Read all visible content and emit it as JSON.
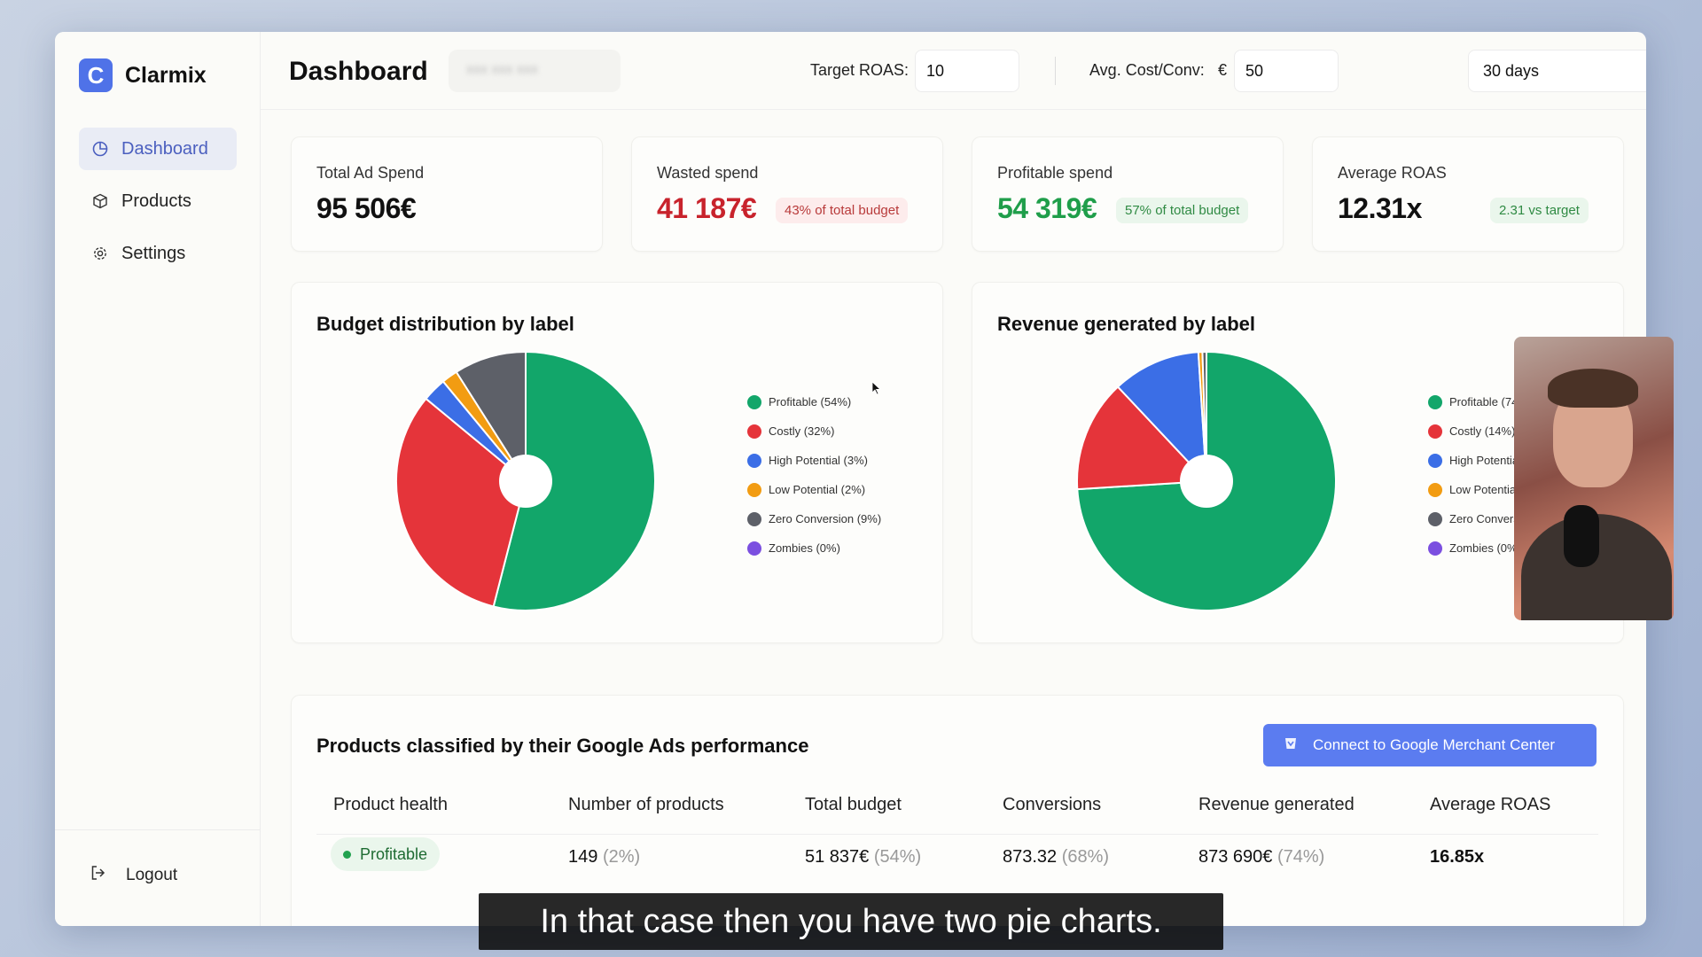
{
  "brand": {
    "name": "Clarmix",
    "logo_letter": "C"
  },
  "sidebar": {
    "items": [
      {
        "label": "Dashboard",
        "icon": "pie-chart-icon",
        "active": true
      },
      {
        "label": "Products",
        "icon": "package-icon",
        "active": false
      },
      {
        "label": "Settings",
        "icon": "gear-icon",
        "active": false
      }
    ],
    "logout_label": "Logout"
  },
  "header": {
    "title": "Dashboard",
    "target_roas_label": "Target ROAS:",
    "target_roas_value": "10",
    "avg_cost_label": "Avg. Cost/Conv:",
    "currency_symbol": "€",
    "avg_cost_value": "50",
    "period_value": "30 days"
  },
  "stats": [
    {
      "label": "Total Ad Spend",
      "value": "95 506€",
      "badge": ""
    },
    {
      "label": "Wasted spend",
      "value": "41 187€",
      "badge": "43% of total budget"
    },
    {
      "label": "Profitable spend",
      "value": "54 319€",
      "badge": "57% of total budget"
    },
    {
      "label": "Average ROAS",
      "value": "12.31x",
      "badge": "2.31 vs target"
    }
  ],
  "colors": {
    "profitable": "#12a66a",
    "costly": "#e5343a",
    "high_potential": "#3b6ee6",
    "low_potential": "#f29c12",
    "zero_conversion": "#5d6068",
    "zombies": "#7b4fe0",
    "accent": "#5b7cf0"
  },
  "chart_data": [
    {
      "type": "pie",
      "title": "Budget distribution by label",
      "categories": [
        "Profitable (54%)",
        "Costly (32%)",
        "High Potential (3%)",
        "Low Potential (2%)",
        "Zero Conversion (9%)",
        "Zombies (0%)"
      ],
      "values": [
        54,
        32,
        3,
        2,
        9,
        0
      ],
      "legend": "right"
    },
    {
      "type": "pie",
      "title": "Revenue generated by label",
      "categories": [
        "Profitable (74",
        "Costly (14%)",
        "High Potentia",
        "Low Potentia",
        "Zero Convers",
        "Zombies (0%"
      ],
      "values": [
        74,
        14,
        11,
        0.5,
        0.5,
        0
      ],
      "legend": "right"
    }
  ],
  "table": {
    "title": "Products classified by their Google Ads performance",
    "connect_button": "Connect to Google Merchant Center",
    "columns": [
      "Product health",
      "Number of products",
      "Total budget",
      "Conversions",
      "Revenue generated",
      "Average ROAS"
    ],
    "rows": [
      {
        "health": "Profitable",
        "products": "149",
        "products_pct": "(2%)",
        "budget": "51 837€",
        "budget_pct": "(54%)",
        "conversions": "873.32",
        "conversions_pct": "(68%)",
        "revenue": "873 690€",
        "revenue_pct": "(74%)",
        "roas": "16.85x"
      }
    ]
  },
  "caption": "In that case then you have two pie charts."
}
